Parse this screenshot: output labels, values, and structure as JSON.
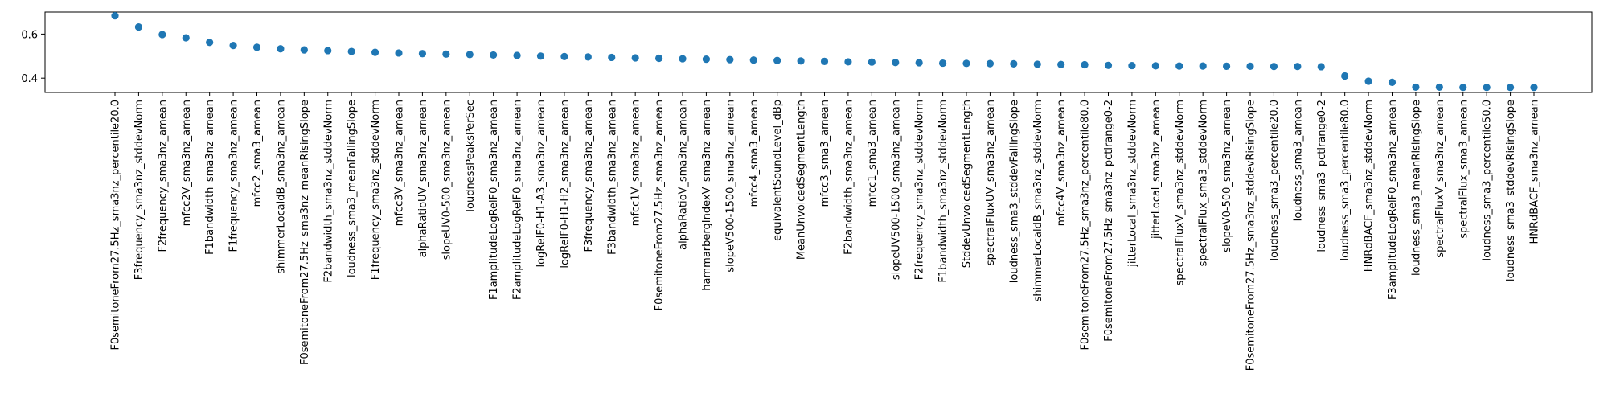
{
  "chart_data": {
    "type": "scatter",
    "title": "",
    "xlabel": "",
    "ylabel": "",
    "ylim": [
      0.335,
      0.7
    ],
    "yticks": [
      0.4,
      0.6
    ],
    "grid": false,
    "marker_color": "#1f77b4",
    "categories": [
      "F0semitoneFrom27.5Hz_sma3nz_percentile20.0",
      "F3frequency_sma3nz_stddevNorm",
      "F2frequency_sma3nz_amean",
      "mfcc2V_sma3nz_amean",
      "F1bandwidth_sma3nz_amean",
      "F1frequency_sma3nz_amean",
      "mfcc2_sma3_amean",
      "shimmerLocaldB_sma3nz_amean",
      "F0semitoneFrom27.5Hz_sma3nz_meanRisingSlope",
      "F2bandwidth_sma3nz_stddevNorm",
      "loudness_sma3_meanFallingSlope",
      "F1frequency_sma3nz_stddevNorm",
      "mfcc3V_sma3nz_amean",
      "alphaRatioUV_sma3nz_amean",
      "slopeUV0-500_sma3nz_amean",
      "loudnessPeaksPerSec",
      "F1amplitudeLogRelF0_sma3nz_amean",
      "F2amplitudeLogRelF0_sma3nz_amean",
      "logRelF0-H1-A3_sma3nz_amean",
      "logRelF0-H1-H2_sma3nz_amean",
      "F3frequency_sma3nz_amean",
      "F3bandwidth_sma3nz_amean",
      "mfcc1V_sma3nz_amean",
      "F0semitoneFrom27.5Hz_sma3nz_amean",
      "alphaRatioV_sma3nz_amean",
      "hammarbergIndexV_sma3nz_amean",
      "slopeV500-1500_sma3nz_amean",
      "mfcc4_sma3_amean",
      "equivalentSoundLevel_dBp",
      "MeanUnvoicedSegmentLength",
      "mfcc3_sma3_amean",
      "F2bandwidth_sma3nz_amean",
      "mfcc1_sma3_amean",
      "slopeUV500-1500_sma3nz_amean",
      "F2frequency_sma3nz_stddevNorm",
      "F1bandwidth_sma3nz_stddevNorm",
      "StddevUnvoicedSegmentLength",
      "spectralFluxUV_sma3nz_amean",
      "loudness_sma3_stddevFallingSlope",
      "shimmerLocaldB_sma3nz_stddevNorm",
      "mfcc4V_sma3nz_amean",
      "F0semitoneFrom27.5Hz_sma3nz_percentile80.0",
      "F0semitoneFrom27.5Hz_sma3nz_pctlrange0-2",
      "jitterLocal_sma3nz_stddevNorm",
      "jitterLocal_sma3nz_amean",
      "spectralFluxV_sma3nz_stddevNorm",
      "spectralFlux_sma3_stddevNorm",
      "slopeV0-500_sma3nz_amean",
      "F0semitoneFrom27.5Hz_sma3nz_stddevRisingSlope",
      "loudness_sma3_percentile20.0",
      "loudness_sma3_amean",
      "loudness_sma3_pctlrange0-2",
      "loudness_sma3_percentile80.0",
      "HNRdBACF_sma3nz_stddevNorm",
      "F3amplitudeLogRelF0_sma3nz_amean",
      "loudness_sma3_meanRisingSlope",
      "spectralFluxV_sma3nz_amean",
      "spectralFlux_sma3_amean",
      "loudness_sma3_percentile50.0",
      "loudness_sma3_stddevRisingSlope",
      "HNRdBACF_sma3nz_amean"
    ],
    "values": [
      0.683,
      0.632,
      0.598,
      0.583,
      0.562,
      0.548,
      0.54,
      0.533,
      0.528,
      0.525,
      0.521,
      0.517,
      0.514,
      0.511,
      0.509,
      0.507,
      0.505,
      0.503,
      0.5,
      0.498,
      0.496,
      0.494,
      0.492,
      0.49,
      0.488,
      0.486,
      0.484,
      0.482,
      0.48,
      0.478,
      0.476,
      0.474,
      0.473,
      0.471,
      0.47,
      0.468,
      0.467,
      0.466,
      0.465,
      0.463,
      0.462,
      0.461,
      0.458,
      0.457,
      0.456,
      0.455,
      0.455,
      0.454,
      0.454,
      0.453,
      0.453,
      0.452,
      0.41,
      0.386,
      0.381,
      0.359,
      0.359,
      0.358,
      0.358,
      0.358,
      0.358
    ]
  }
}
